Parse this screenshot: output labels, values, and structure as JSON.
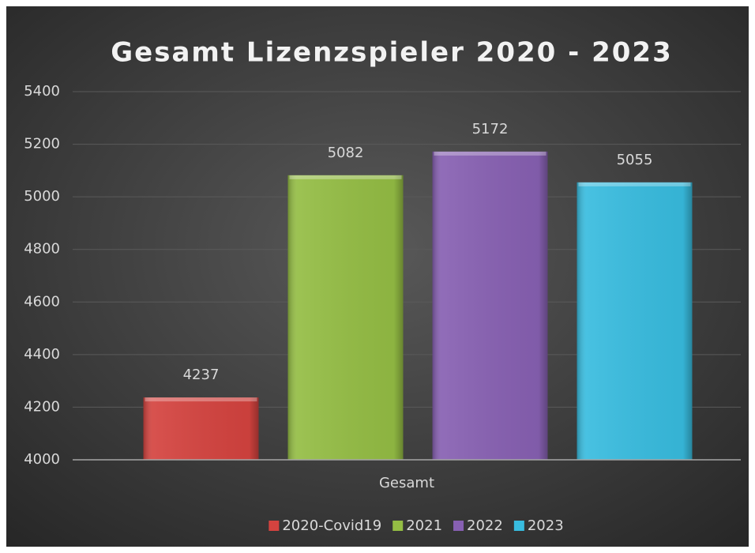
{
  "chart_data": {
    "type": "bar",
    "title": "Gesamt Lizenzspieler 2020 - 2023",
    "categories": [
      "Gesamt"
    ],
    "series": [
      {
        "name": "2020-Covid19",
        "color": "#d4433f",
        "values": [
          4237
        ]
      },
      {
        "name": "2021",
        "color": "#94bd44",
        "values": [
          5082
        ]
      },
      {
        "name": "2022",
        "color": "#8760b2",
        "values": [
          5172
        ]
      },
      {
        "name": "2023",
        "color": "#38bcdf",
        "values": [
          5055
        ]
      }
    ],
    "ylim": [
      4000,
      5400
    ],
    "yticks": [
      4000,
      4200,
      4400,
      4600,
      4800,
      5000,
      5200,
      5400
    ],
    "grid": true,
    "legend": "bottom"
  }
}
